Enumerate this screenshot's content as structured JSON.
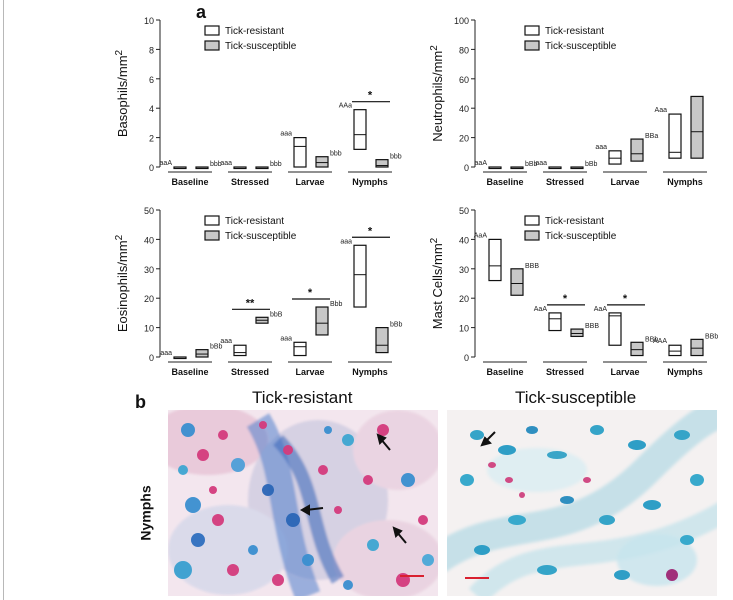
{
  "figure": {
    "label_a": "a",
    "label_b": "b"
  },
  "legend": {
    "resistant": "Tick-resistant",
    "susceptible": "Tick-susceptible"
  },
  "colors": {
    "resistant_fill": "#ffffff",
    "susceptible_fill": "#c8c8c8",
    "stroke": "#111111"
  },
  "chart_data": [
    {
      "type": "box",
      "ylabel": "Basophils/mm2",
      "ylim": [
        0,
        10
      ],
      "yticks": [
        0,
        2,
        4,
        6,
        8,
        10
      ],
      "categories": [
        "Baseline",
        "Stressed",
        "Larvae",
        "Nymphs"
      ],
      "series": [
        {
          "name": "Tick-resistant",
          "boxes": [
            [
              0,
              0,
              0
            ],
            [
              0,
              0,
              0
            ],
            [
              0,
              1.4,
              2.0
            ],
            [
              1.2,
              2.2,
              3.9
            ]
          ]
        },
        {
          "name": "Tick-susceptible",
          "boxes": [
            [
              0,
              0,
              0
            ],
            [
              0,
              0,
              0
            ],
            [
              0,
              0.3,
              0.7
            ],
            [
              0,
              0.1,
              0.5
            ]
          ]
        }
      ],
      "letters_resistant": [
        "aaA",
        "aaa",
        "aaa",
        "AAa"
      ],
      "letters_susceptible": [
        "bbb",
        "bbb",
        "bbb",
        "bbb"
      ],
      "significance": [
        {
          "category": "Nymphs",
          "label": "*"
        }
      ]
    },
    {
      "type": "box",
      "ylabel": "Neutrophils/mm2",
      "ylim": [
        0,
        100
      ],
      "yticks": [
        0,
        20,
        40,
        60,
        80,
        100
      ],
      "categories": [
        "Baseline",
        "Stressed",
        "Larvae",
        "Nymphs"
      ],
      "series": [
        {
          "name": "Tick-resistant",
          "boxes": [
            [
              0,
              0,
              0
            ],
            [
              0,
              0,
              0
            ],
            [
              2,
              6,
              11
            ],
            [
              6,
              10,
              36
            ]
          ]
        },
        {
          "name": "Tick-susceptible",
          "boxes": [
            [
              0,
              0,
              0
            ],
            [
              0,
              0,
              0
            ],
            [
              4,
              9,
              19
            ],
            [
              6,
              24,
              48
            ]
          ]
        }
      ],
      "letters_resistant": [
        "aaA",
        "aaa",
        "aaa",
        "Aaa"
      ],
      "letters_susceptible": [
        "bBb",
        "bBb",
        "BBa",
        ""
      ],
      "significance": []
    },
    {
      "type": "box",
      "ylabel": "Eosinophils/mm2",
      "ylim": [
        0,
        50
      ],
      "yticks": [
        0,
        10,
        20,
        30,
        40,
        50
      ],
      "categories": [
        "Baseline",
        "Stressed",
        "Larvae",
        "Nymphs"
      ],
      "series": [
        {
          "name": "Tick-resistant",
          "boxes": [
            [
              0,
              0,
              0
            ],
            [
              0.5,
              1.5,
              4
            ],
            [
              0.5,
              3.5,
              5
            ],
            [
              17,
              28,
              38
            ]
          ]
        },
        {
          "name": "Tick-susceptible",
          "boxes": [
            [
              0,
              1,
              2.5
            ],
            [
              11.5,
              12.5,
              13.5
            ],
            [
              7.5,
              11.5,
              17
            ],
            [
              1.5,
              4,
              10
            ]
          ]
        }
      ],
      "letters_resistant": [
        "aaa",
        "aaa",
        "aaa",
        "aaa"
      ],
      "letters_susceptible": [
        "bBb",
        "bbB",
        "Bbb",
        "bBb"
      ],
      "significance": [
        {
          "category": "Stressed",
          "label": "**"
        },
        {
          "category": "Larvae",
          "label": "*"
        },
        {
          "category": "Nymphs",
          "label": "*"
        }
      ]
    },
    {
      "type": "box",
      "ylabel": "Mast Cells/mm2",
      "ylim": [
        0,
        50
      ],
      "yticks": [
        0,
        10,
        20,
        30,
        40,
        50
      ],
      "categories": [
        "Baseline",
        "Stressed",
        "Larvae",
        "Nymphs"
      ],
      "series": [
        {
          "name": "Tick-resistant",
          "boxes": [
            [
              26,
              31,
              40
            ],
            [
              9,
              13,
              15
            ],
            [
              4,
              14,
              15
            ],
            [
              0.5,
              2,
              4
            ]
          ]
        },
        {
          "name": "Tick-susceptible",
          "boxes": [
            [
              21,
              25,
              30
            ],
            [
              7,
              8,
              9.5
            ],
            [
              0.5,
              2.5,
              5
            ],
            [
              0.5,
              3,
              6
            ]
          ]
        }
      ],
      "letters_resistant": [
        "AaA",
        "AaA",
        "AaA",
        "AAA"
      ],
      "letters_susceptible": [
        "BBB",
        "BBB",
        "BBb",
        "BBb"
      ],
      "significance": [
        {
          "category": "Stressed",
          "label": "*"
        },
        {
          "category": "Larvae",
          "label": "*"
        }
      ]
    }
  ],
  "panel_b": {
    "title_resistant": "Tick-resistant",
    "title_susceptible": "Tick-susceptible",
    "row_label": "Nymphs"
  }
}
